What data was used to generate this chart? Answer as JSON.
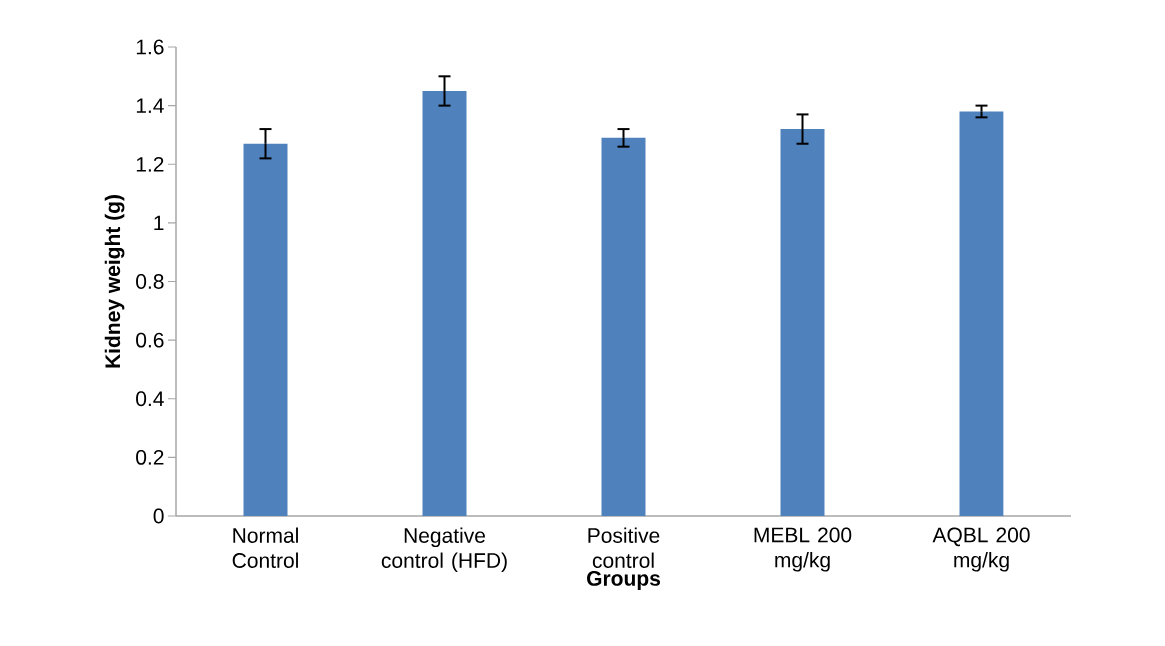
{
  "chart_data": {
    "type": "bar",
    "xlabel": "Groups",
    "ylabel": "Kidney weight (g)",
    "categories": [
      "Normal Control",
      "Negative control (HFD)",
      "Positive control",
      "MEBL 200 mg/kg",
      "AQBL 200 mg/kg"
    ],
    "values": [
      1.27,
      1.45,
      1.29,
      1.32,
      1.38
    ],
    "errors": [
      0.05,
      0.05,
      0.03,
      0.05,
      0.02
    ],
    "color": "#4f81bd",
    "ylim": [
      0,
      1.6
    ],
    "yticks": [
      0,
      0.2,
      0.4,
      0.6,
      0.8,
      1,
      1.2,
      1.4,
      1.6
    ],
    "grid": false
  }
}
